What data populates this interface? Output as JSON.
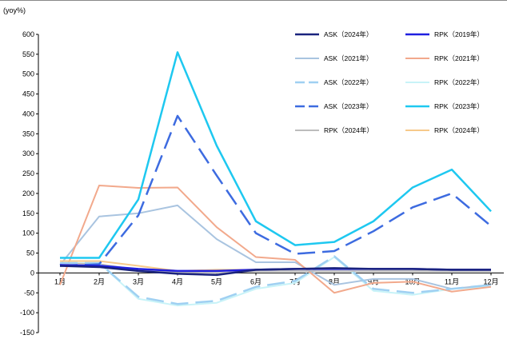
{
  "chart_data": {
    "type": "line",
    "ylabel": "(yoy%)",
    "ylim": [
      -150,
      600
    ],
    "yticks": [
      600,
      550,
      500,
      450,
      400,
      350,
      300,
      250,
      200,
      150,
      100,
      50,
      0,
      -50,
      -100,
      -150
    ],
    "categories": [
      "1月",
      "2月",
      "3月",
      "4月",
      "5月",
      "6月",
      "7月",
      "8月",
      "9月",
      "10月",
      "11月",
      "12月"
    ],
    "grid": false,
    "legend_position": "top-right",
    "series": [
      {
        "name": "ASK（2024年）",
        "color": "#1a237e",
        "dash": "solid",
        "width": 2.5,
        "values": [
          18,
          15,
          5,
          -2,
          -5,
          8,
          10,
          12,
          10,
          10,
          8,
          8
        ]
      },
      {
        "name": "RPK（2019年）",
        "color": "#1f1fe0",
        "dash": "solid",
        "width": 2.5,
        "values": [
          20,
          18,
          10,
          5,
          5,
          8,
          10,
          10,
          10,
          10,
          8,
          8
        ]
      },
      {
        "name": "ASK（2021年）",
        "color": "#a9c4e0",
        "dash": "solid",
        "width": 2,
        "values": [
          20,
          142,
          150,
          170,
          85,
          27,
          27,
          -30,
          -15,
          -15,
          -40,
          -30
        ]
      },
      {
        "name": "RPK（2021年）",
        "color": "#f2a98c",
        "dash": "solid",
        "width": 2,
        "values": [
          -30,
          220,
          214,
          215,
          115,
          40,
          33,
          -50,
          -25,
          -22,
          -47,
          -35
        ]
      },
      {
        "name": "ASK（2022年）",
        "color": "#9fd0f2",
        "dash": "longdash",
        "width": 2.5,
        "values": [
          25,
          25,
          -60,
          -78,
          -70,
          -35,
          -20,
          42,
          -40,
          -50,
          -40,
          -30
        ]
      },
      {
        "name": "RPK（2022年）",
        "color": "#c8f3f8",
        "dash": "solid",
        "width": 2,
        "values": [
          25,
          25,
          -65,
          -82,
          -75,
          -40,
          -25,
          40,
          -45,
          -55,
          -40,
          -35
        ]
      },
      {
        "name": "ASK（2023年）",
        "color": "#3d6be0",
        "dash": "longdash",
        "width": 2.5,
        "values": [
          18,
          22,
          145,
          395,
          245,
          100,
          48,
          55,
          105,
          165,
          200,
          118
        ]
      },
      {
        "name": "RPK（2023年）",
        "color": "#1ec8f0",
        "dash": "solid",
        "width": 2.5,
        "values": [
          38,
          38,
          185,
          555,
          320,
          130,
          70,
          78,
          130,
          215,
          260,
          155
        ]
      },
      {
        "name": "RPK（2024年）",
        "color": "#bcbcbc",
        "dash": "solid",
        "width": 2,
        "values": [
          25,
          22,
          8,
          2,
          0,
          5,
          5,
          5,
          5,
          5,
          5,
          5
        ]
      },
      {
        "name": "RPK（2024年）",
        "color": "#f7c98a",
        "dash": "solid",
        "width": 2,
        "values": [
          30,
          30,
          18,
          5,
          8,
          8,
          10,
          10,
          10,
          10,
          8,
          8
        ]
      }
    ]
  }
}
